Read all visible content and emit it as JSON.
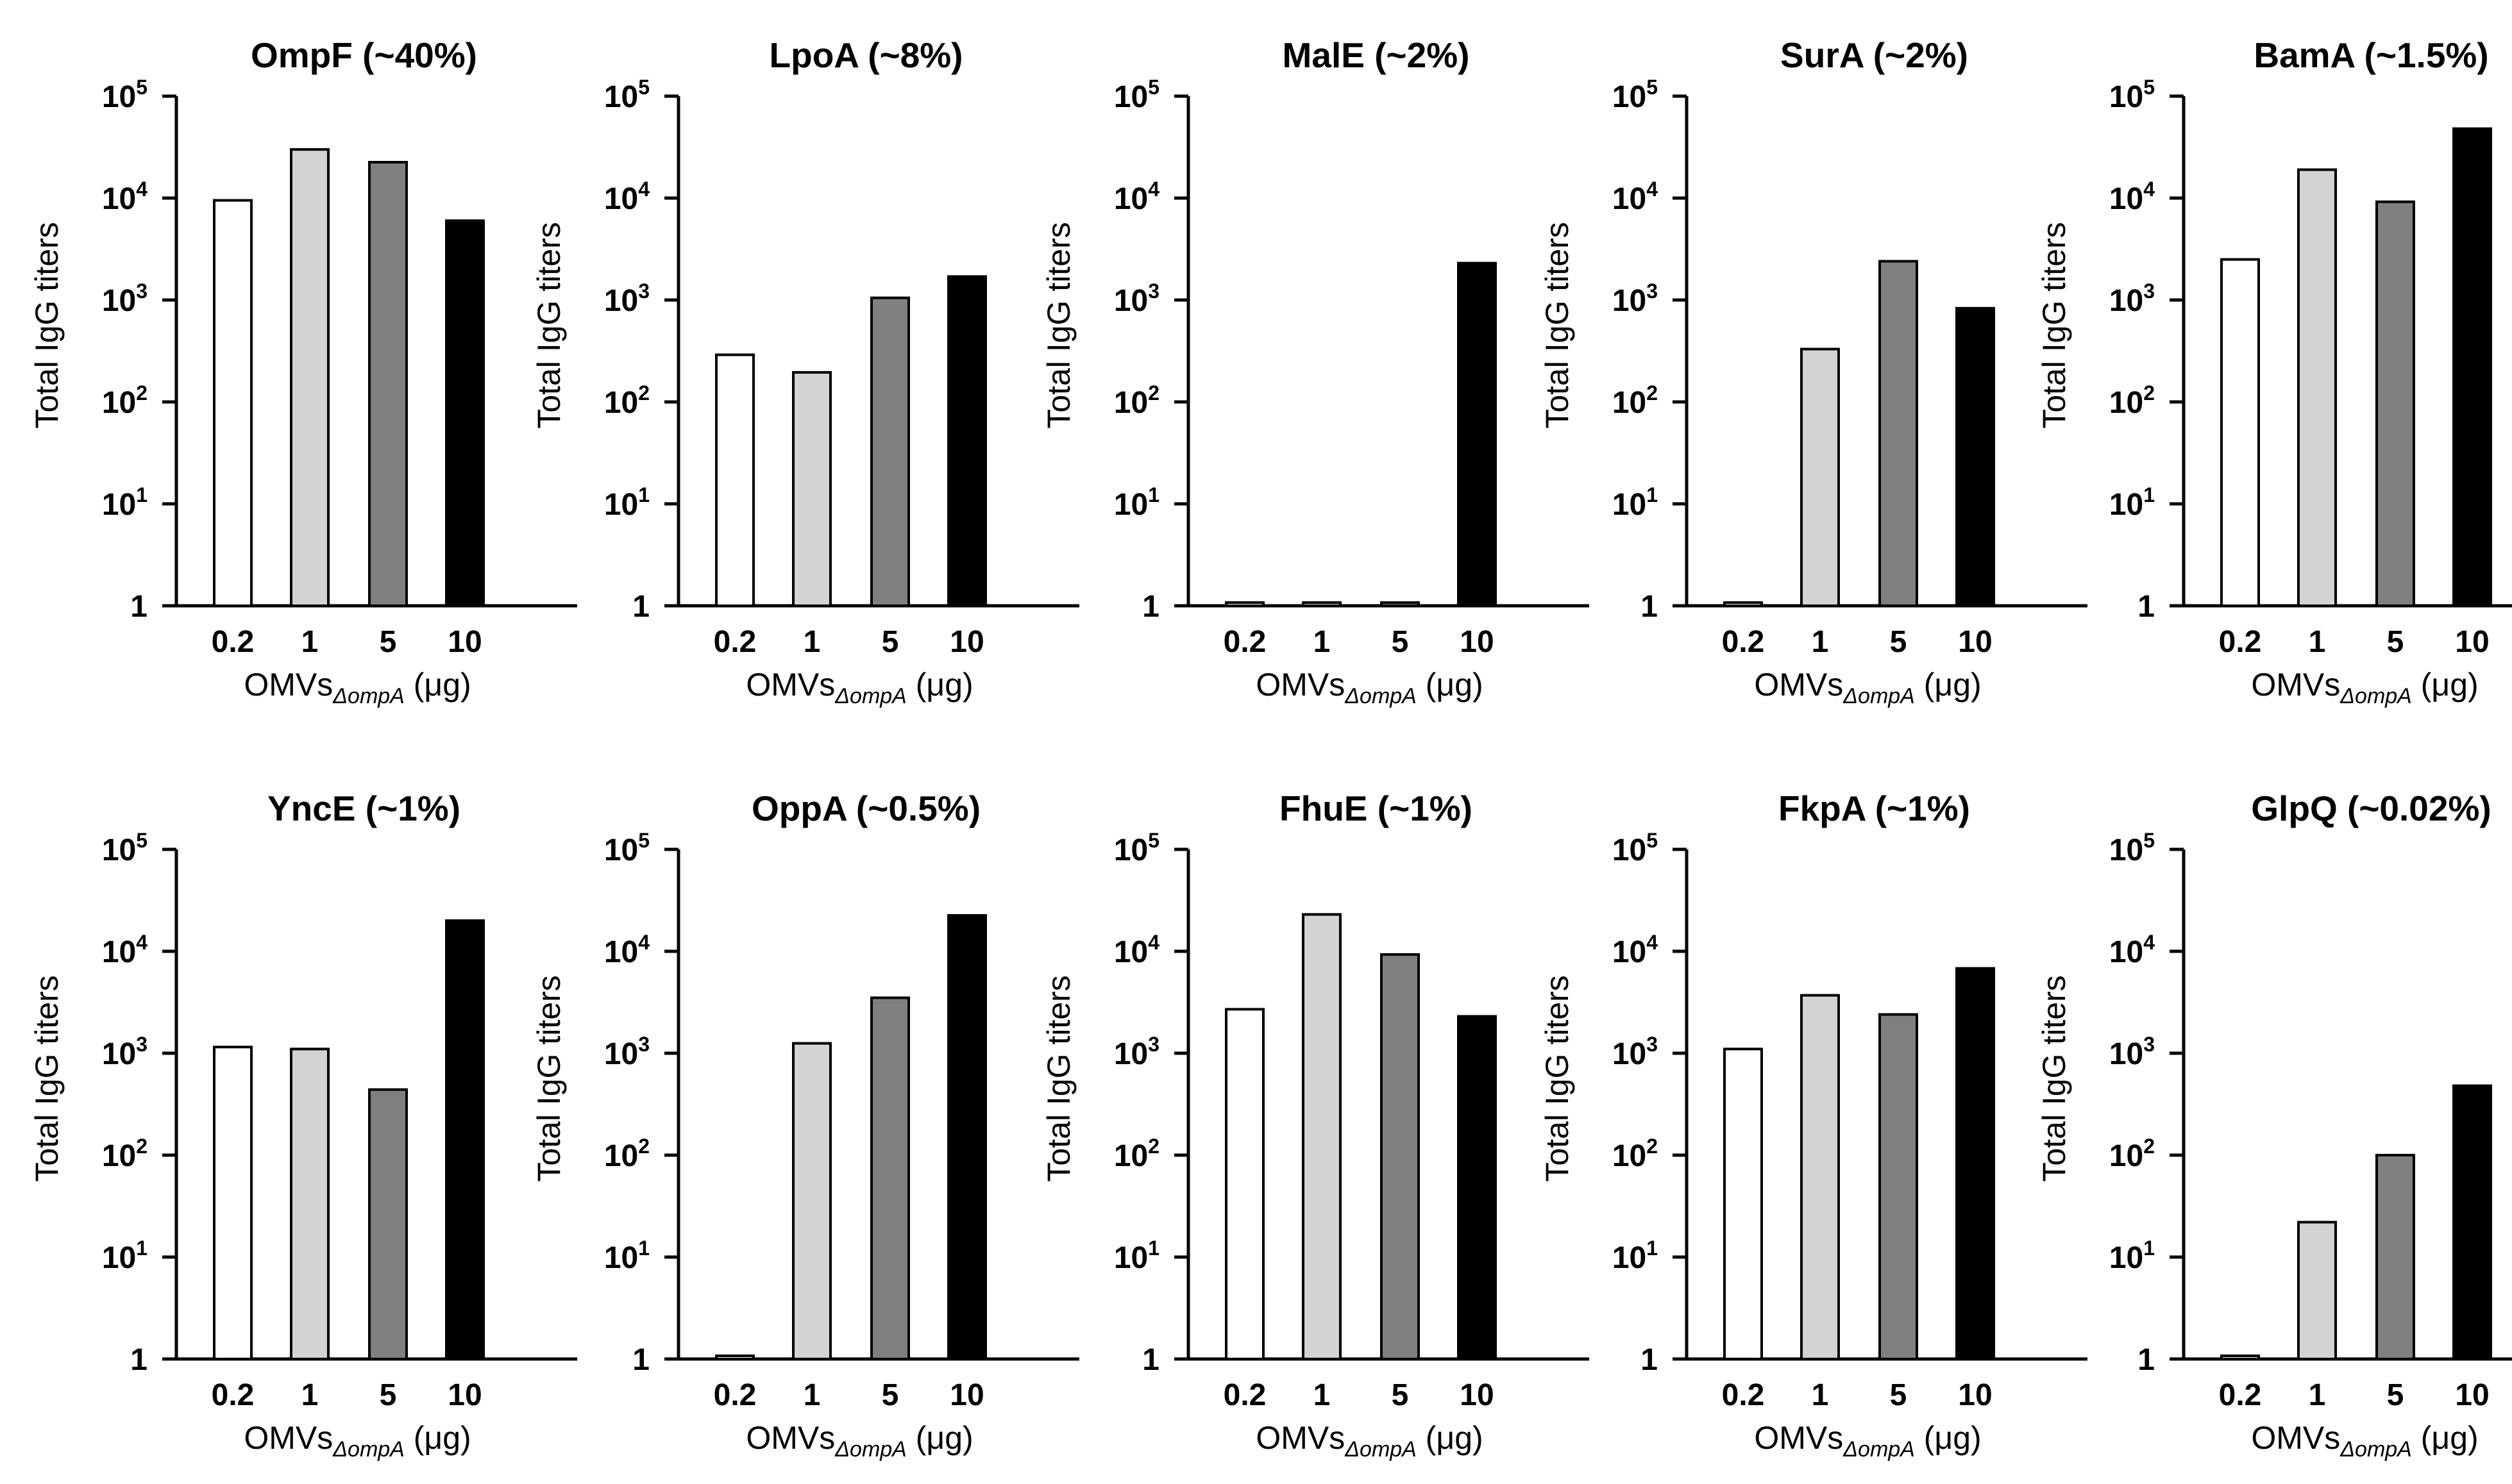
{
  "figure": {
    "y_tick_base": "10",
    "y_tick_one": "1",
    "x_label_main": "OMVs",
    "x_label_sub": "ΔompA",
    "x_label_unit": " (μg)",
    "y_label": "Total IgG titers",
    "colors": {
      "0.2": "#ffffff",
      "1": "#d3d3d3",
      "5": "#7f7f7f",
      "10": "#000000"
    }
  },
  "chart_data": [
    {
      "type": "bar",
      "title": "OmpF (~40%)",
      "categories": [
        "0.2",
        "1",
        "5",
        "10"
      ],
      "values": [
        9500,
        30000,
        22500,
        6000
      ],
      "y_scale": "log",
      "ylim": [
        1,
        100000
      ]
    },
    {
      "type": "bar",
      "title": "LpoA (~8%)",
      "categories": [
        "0.2",
        "1",
        "5",
        "10"
      ],
      "values": [
        290,
        195,
        1050,
        1700
      ],
      "y_scale": "log",
      "ylim": [
        1,
        100000
      ]
    },
    {
      "type": "bar",
      "title": "MalE (~2%)",
      "categories": [
        "0.2",
        "1",
        "5",
        "10"
      ],
      "values": [
        1,
        1,
        1,
        2300
      ],
      "y_scale": "log",
      "ylim": [
        1,
        100000
      ]
    },
    {
      "type": "bar",
      "title": "SurA (~2%)",
      "categories": [
        "0.2",
        "1",
        "5",
        "10"
      ],
      "values": [
        1,
        330,
        2400,
        830
      ],
      "y_scale": "log",
      "ylim": [
        1,
        100000
      ]
    },
    {
      "type": "bar",
      "title": "BamA (~1.5%)",
      "categories": [
        "0.2",
        "1",
        "5",
        "10"
      ],
      "values": [
        2500,
        19000,
        9200,
        48000
      ],
      "y_scale": "log",
      "ylim": [
        1,
        100000
      ]
    },
    {
      "type": "bar",
      "title": "YncE (~1%)",
      "categories": [
        "0.2",
        "1",
        "5",
        "10"
      ],
      "values": [
        1150,
        1100,
        440,
        20000
      ],
      "y_scale": "log",
      "ylim": [
        1,
        100000
      ]
    },
    {
      "type": "bar",
      "title": "OppA (~0.5%)",
      "categories": [
        "0.2",
        "1",
        "5",
        "10"
      ],
      "values": [
        1,
        1250,
        3500,
        22500
      ],
      "y_scale": "log",
      "ylim": [
        1,
        100000
      ]
    },
    {
      "type": "bar",
      "title": "FhuE (~1%)",
      "categories": [
        "0.2",
        "1",
        "5",
        "10"
      ],
      "values": [
        2700,
        23000,
        9300,
        2300
      ],
      "y_scale": "log",
      "ylim": [
        1,
        100000
      ]
    },
    {
      "type": "bar",
      "title": "FkpA (~1%)",
      "categories": [
        "0.2",
        "1",
        "5",
        "10"
      ],
      "values": [
        1100,
        3700,
        2400,
        6800
      ],
      "y_scale": "log",
      "ylim": [
        1,
        100000
      ]
    },
    {
      "type": "bar",
      "title": "GlpQ (~0.02%)",
      "categories": [
        "0.2",
        "1",
        "5",
        "10"
      ],
      "values": [
        1,
        22,
        100,
        480
      ],
      "y_scale": "log",
      "ylim": [
        1,
        100000
      ]
    }
  ]
}
